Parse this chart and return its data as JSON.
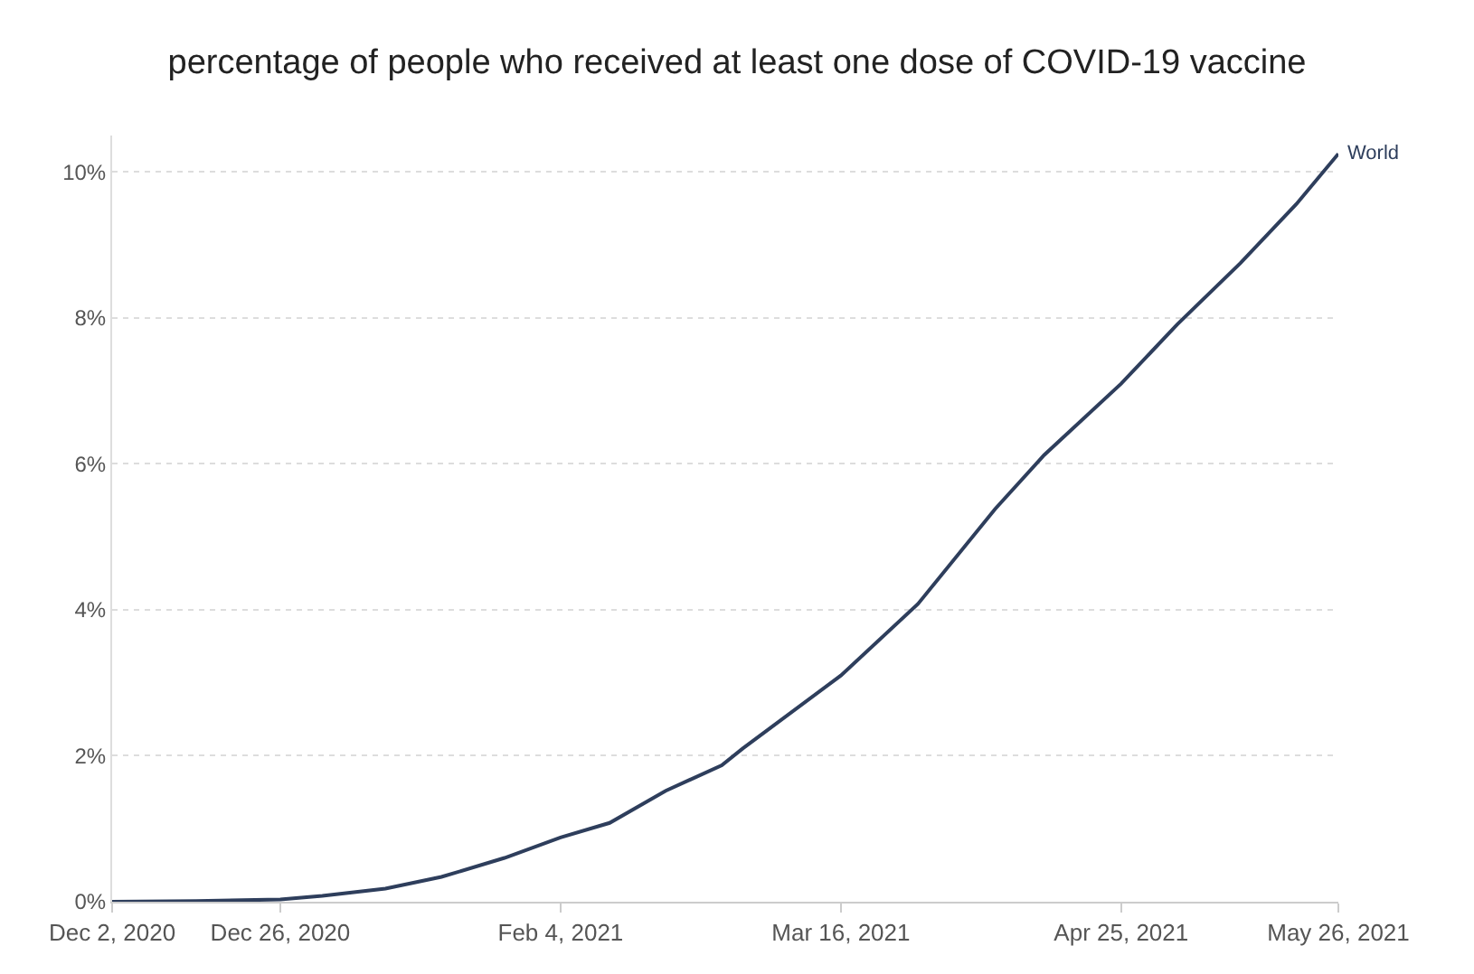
{
  "chart_data": {
    "type": "line",
    "title": "percentage of people who received at least one dose of COVID-19 vaccine",
    "x": [
      "2020-12-02",
      "2020-12-14",
      "2020-12-26",
      "2021-01-01",
      "2021-01-10",
      "2021-01-18",
      "2021-01-27",
      "2021-02-04",
      "2021-02-11",
      "2021-02-19",
      "2021-02-27",
      "2021-03-02",
      "2021-03-16",
      "2021-03-27",
      "2021-04-07",
      "2021-04-14",
      "2021-04-25",
      "2021-05-03",
      "2021-05-12",
      "2021-05-20",
      "2021-05-26"
    ],
    "series": [
      {
        "name": "World",
        "color": "#2e3e5c",
        "values": [
          0,
          0.01,
          0.03,
          0.08,
          0.18,
          0.34,
          0.6,
          0.88,
          1.08,
          1.52,
          1.87,
          2.1,
          3.1,
          4.08,
          5.38,
          6.12,
          7.1,
          7.91,
          8.75,
          9.56,
          10.25
        ]
      }
    ],
    "xlim": [
      "2020-12-02",
      "2021-05-26"
    ],
    "xticks": [
      {
        "value": "2020-12-02",
        "label": "Dec 2, 2020"
      },
      {
        "value": "2020-12-26",
        "label": "Dec 26, 2020"
      },
      {
        "value": "2021-02-04",
        "label": "Feb 4, 2021"
      },
      {
        "value": "2021-03-16",
        "label": "Mar 16, 2021"
      },
      {
        "value": "2021-04-25",
        "label": "Apr 25, 2021"
      },
      {
        "value": "2021-05-26",
        "label": "May 26, 2021"
      }
    ],
    "ylim": [
      0,
      10.5
    ],
    "yticks": [
      {
        "value": 0,
        "label": "0%"
      },
      {
        "value": 2,
        "label": "2%"
      },
      {
        "value": 4,
        "label": "4%"
      },
      {
        "value": 6,
        "label": "6%"
      },
      {
        "value": 8,
        "label": "8%"
      },
      {
        "value": 10,
        "label": "10%"
      }
    ],
    "grid": "y",
    "legend": false,
    "marker": "none",
    "line_style": "solid"
  }
}
